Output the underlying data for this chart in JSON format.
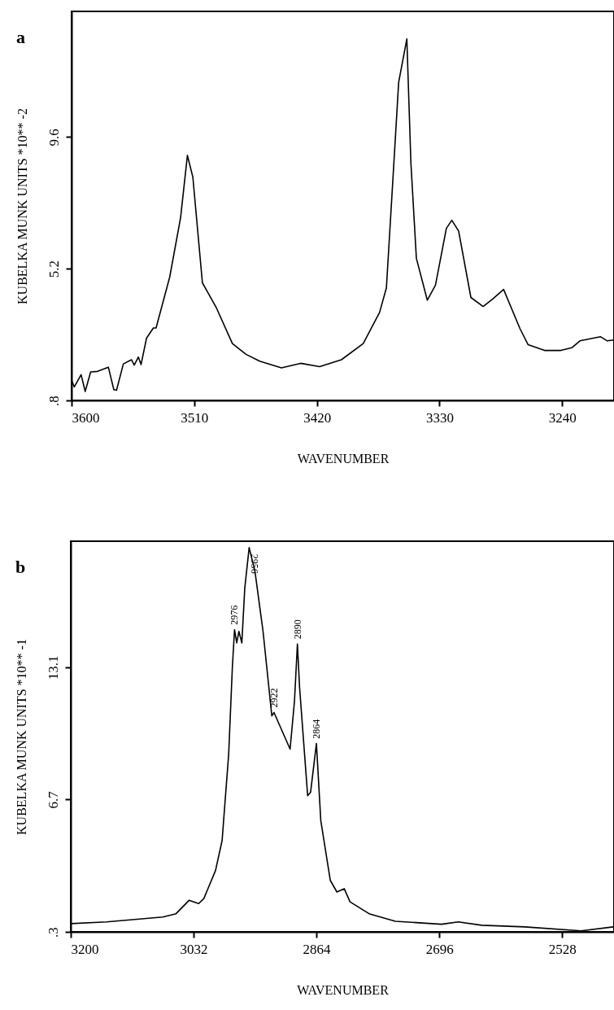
{
  "chart_data": [
    {
      "type": "line",
      "title": "a",
      "xlabel": "WAVENUMBER",
      "ylabel": "KUBELKA MUNK UNITS *10** -2",
      "xlim": [
        3600,
        3202
      ],
      "xticks": [
        3600,
        3510,
        3420,
        3330,
        3240
      ],
      "ylim": [
        0.8,
        13.8
      ],
      "yticks": [
        {
          "value": 0.8,
          "label": ".8"
        },
        5.2,
        9.6
      ],
      "grid": false,
      "color": "#000000",
      "x": [
        3600,
        3598,
        3593,
        3590,
        3586,
        3581,
        3573,
        3569,
        3567,
        3562,
        3556,
        3554,
        3551,
        3549,
        3545,
        3540,
        3538,
        3528,
        3520,
        3515,
        3511,
        3504,
        3494,
        3482,
        3472,
        3462,
        3446,
        3432,
        3418,
        3402,
        3386,
        3374,
        3369,
        3364,
        3360,
        3354,
        3351,
        3347,
        3339,
        3333,
        3325,
        3321,
        3316,
        3307,
        3298,
        3291,
        3283,
        3271,
        3265,
        3253,
        3241,
        3233,
        3227,
        3212,
        3207,
        3202
      ],
      "values": [
        1.48,
        1.25,
        1.66,
        1.1,
        1.75,
        1.77,
        1.91,
        1.16,
        1.14,
        2.02,
        2.16,
        1.98,
        2.25,
        2.0,
        2.88,
        3.22,
        3.22,
        4.92,
        6.91,
        8.99,
        8.26,
        4.73,
        3.92,
        2.7,
        2.34,
        2.11,
        1.89,
        2.04,
        1.93,
        2.16,
        2.7,
        3.74,
        4.56,
        8.36,
        11.43,
        12.88,
        8.72,
        5.55,
        4.15,
        4.65,
        6.55,
        6.82,
        6.46,
        4.24,
        3.94,
        4.19,
        4.51,
        3.2,
        2.66,
        2.47,
        2.47,
        2.56,
        2.79,
        2.93,
        2.79,
        2.82
      ]
    },
    {
      "type": "line",
      "title": "b",
      "xlabel": "WAVENUMBER",
      "ylabel": "KUBELKA MUNK UNITS *10** -1",
      "xlim": [
        3200,
        2457
      ],
      "xticks": [
        3200,
        3032,
        2864,
        2696,
        2528
      ],
      "ylim": [
        0.3,
        19.2
      ],
      "yticks": [
        {
          "value": 0.3,
          "label": ".3"
        },
        6.7,
        13.1
      ],
      "grid": false,
      "color": "#000000",
      "x": [
        3200,
        3151,
        3074,
        3056,
        3038,
        3025,
        3018,
        3002,
        2993,
        2984,
        2979,
        2976,
        2973,
        2970,
        2966,
        2962,
        2956,
        2948,
        2937,
        2925,
        2922,
        2900,
        2894,
        2890,
        2887,
        2876,
        2872,
        2864,
        2858,
        2845,
        2836,
        2826,
        2818,
        2792,
        2756,
        2693,
        2670,
        2638,
        2579,
        2502,
        2458
      ],
      "values": [
        0.7,
        0.78,
        1.02,
        1.18,
        1.83,
        1.67,
        1.91,
        3.27,
        4.72,
        8.9,
        13.08,
        14.92,
        14.28,
        14.84,
        14.28,
        16.93,
        18.89,
        17.73,
        14.84,
        10.75,
        10.91,
        9.14,
        11.47,
        14.23,
        12.11,
        6.89,
        7.05,
        9.41,
        5.68,
        2.79,
        2.23,
        2.39,
        1.75,
        1.18,
        0.81,
        0.67,
        0.78,
        0.62,
        0.54,
        0.35,
        0.54
      ],
      "annotations": [
        {
          "text": "2976",
          "x": 2976,
          "y": 14.92
        },
        {
          "text": "2956",
          "x": 2956,
          "y": 18.89
        },
        {
          "text": "2922",
          "x": 2922,
          "y": 10.91
        },
        {
          "text": "2890",
          "x": 2890,
          "y": 14.23
        },
        {
          "text": "2864",
          "x": 2864,
          "y": 9.41
        }
      ]
    }
  ]
}
